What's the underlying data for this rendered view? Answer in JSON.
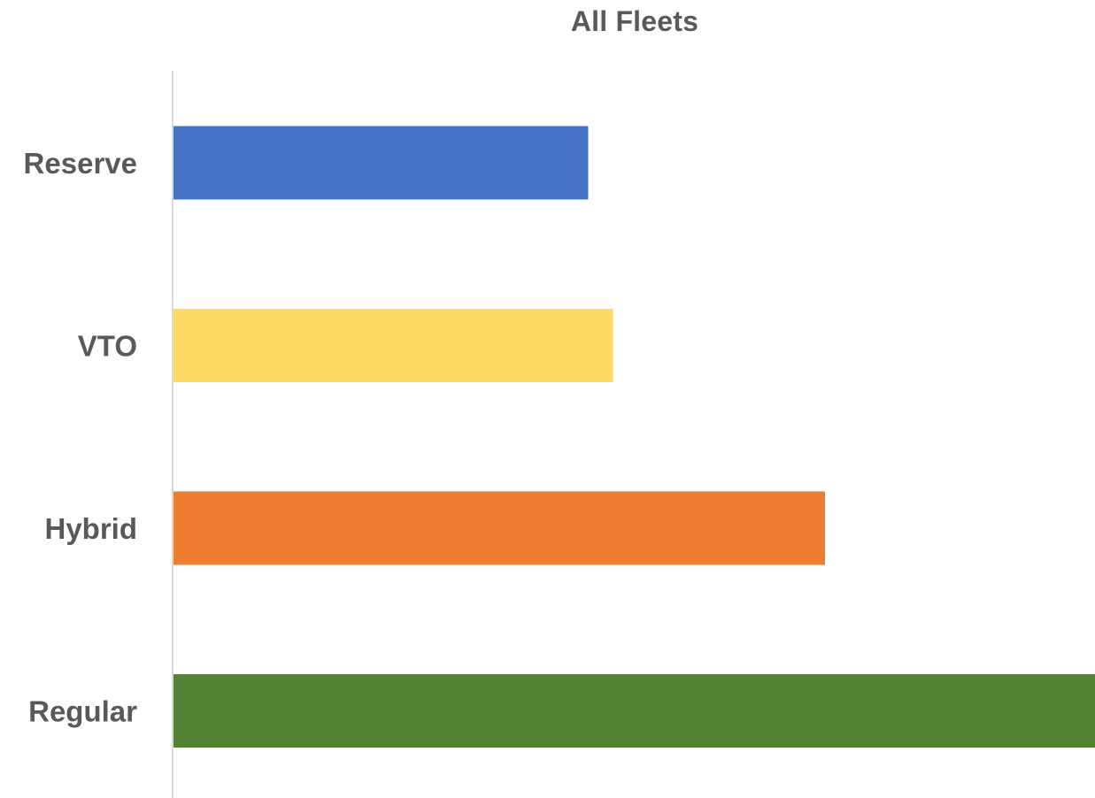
{
  "chart_data": {
    "type": "bar",
    "orientation": "horizontal",
    "title": "All Fleets",
    "categories": [
      "Reserve",
      "VTO",
      "Hybrid",
      "Regular"
    ],
    "values": [
      45,
      47.7,
      70.7,
      100
    ],
    "colors": [
      "#4472C4",
      "#FFD966",
      "#ED7D31",
      "#548235"
    ],
    "xlim": [
      0,
      100
    ],
    "grid": false,
    "legend": "none"
  }
}
